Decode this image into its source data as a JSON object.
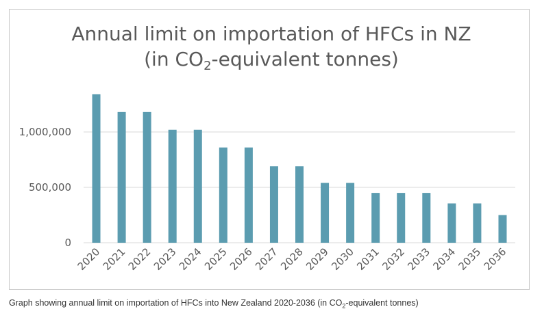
{
  "chart_data": {
    "type": "bar",
    "title_line1": "Annual limit on importation of HFCs in NZ",
    "title_line2_prefix": "(in CO",
    "title_line2_sub": "2",
    "title_line2_suffix": "-equivalent tonnes)",
    "xlabel": "",
    "ylabel": "",
    "categories": [
      "2020",
      "2021",
      "2022",
      "2023",
      "2024",
      "2025",
      "2026",
      "2027",
      "2028",
      "2029",
      "2030",
      "2031",
      "2032",
      "2033",
      "2034",
      "2035",
      "2036"
    ],
    "values": [
      1340000,
      1180000,
      1180000,
      1020000,
      1020000,
      860000,
      860000,
      690000,
      690000,
      540000,
      540000,
      450000,
      450000,
      450000,
      355000,
      355000,
      250000
    ],
    "ylim": [
      0,
      1500000
    ],
    "yticks": [
      0,
      500000,
      1000000
    ],
    "ytick_labels": [
      "0",
      "500,000",
      "1,000,000"
    ],
    "grid": true,
    "colors": {
      "bar": "#5b9cb0",
      "grid": "#d9d9d9",
      "text": "#595959"
    }
  },
  "caption": {
    "prefix": "Graph showing annual limit on importation of HFCs into New Zealand 2020-2036 (in CO",
    "sub": "2",
    "suffix": "-equivalent tonnes)"
  }
}
